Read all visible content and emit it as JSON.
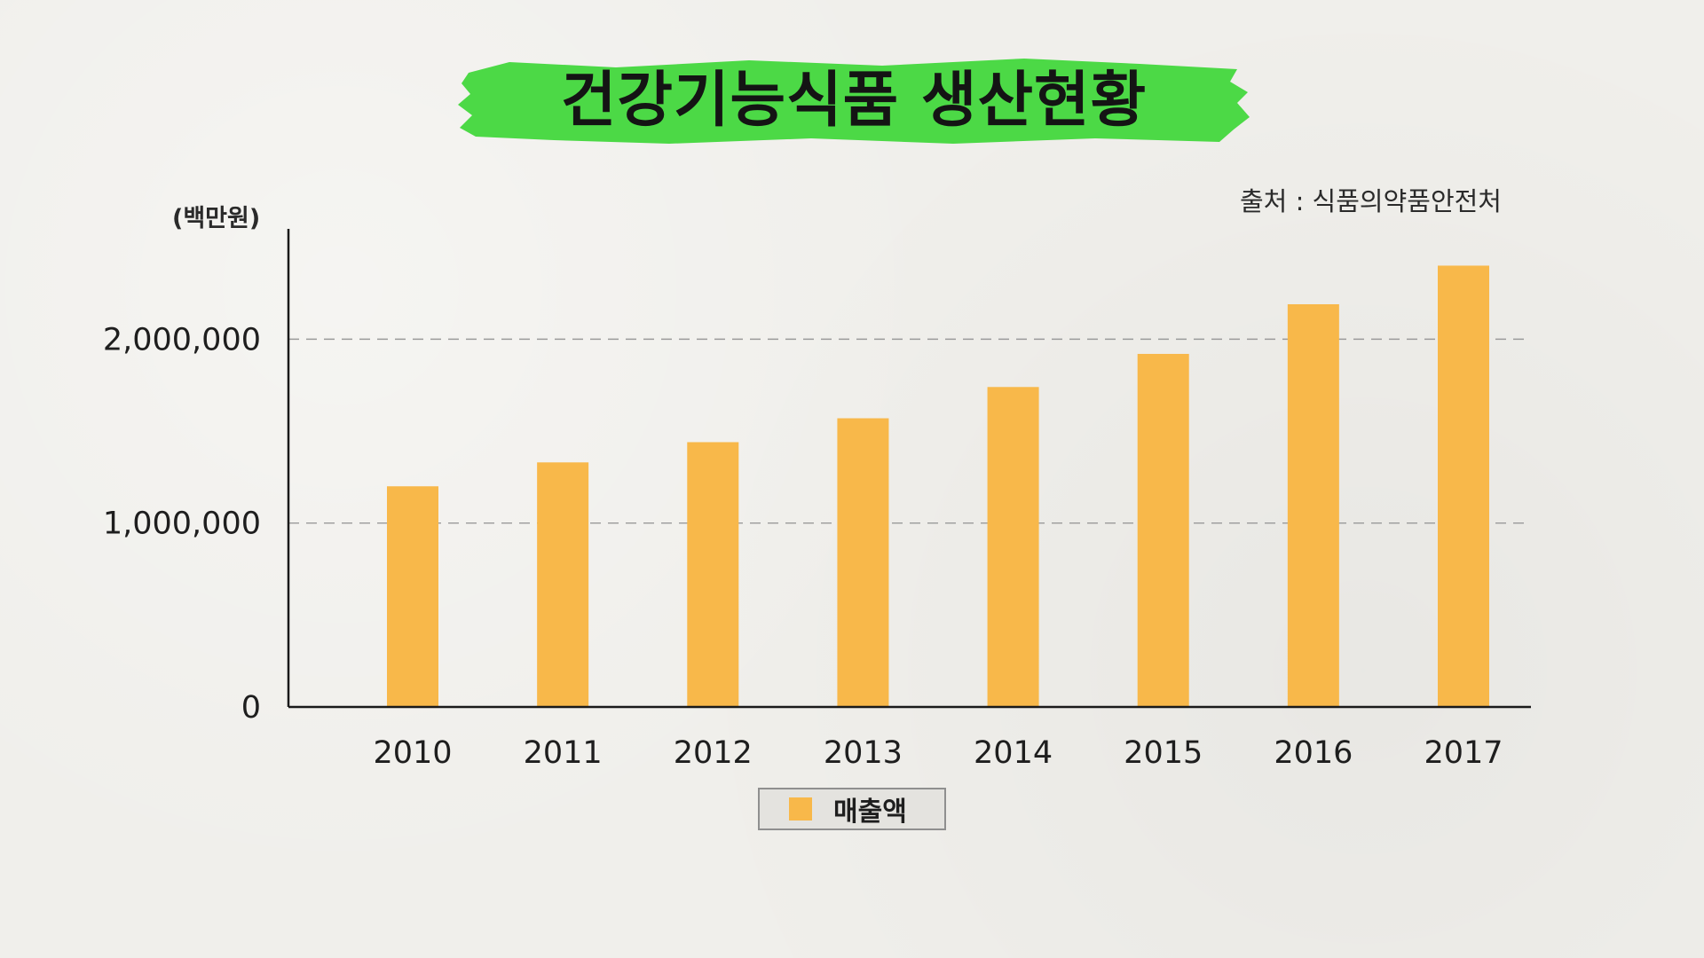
{
  "title": "건강기능식품 생산현황",
  "source": "출처 : 식품의약품안전처",
  "unit": "(백만원)",
  "colors": {
    "brush": "#4cd946",
    "bar": "#f8b84a",
    "axis": "#1a1a1a",
    "grid": "#9a9a9a"
  },
  "legend": {
    "label": "매출액",
    "color": "#f8b84a"
  },
  "chart_data": {
    "type": "bar",
    "categories": [
      "2010",
      "2011",
      "2012",
      "2013",
      "2014",
      "2015",
      "2016",
      "2017"
    ],
    "series": [
      {
        "name": "매출액",
        "values": [
          1200000,
          1330000,
          1440000,
          1570000,
          1740000,
          1920000,
          2190000,
          2400000
        ]
      }
    ],
    "ylim": [
      0,
      2600000
    ],
    "yticks": [
      0,
      1000000,
      2000000
    ],
    "ytick_labels": [
      "0",
      "1,000,000",
      "2,000,000"
    ],
    "ylabel": "(백만원)",
    "grid": "horizontal dashed",
    "legend_position": "bottom"
  }
}
